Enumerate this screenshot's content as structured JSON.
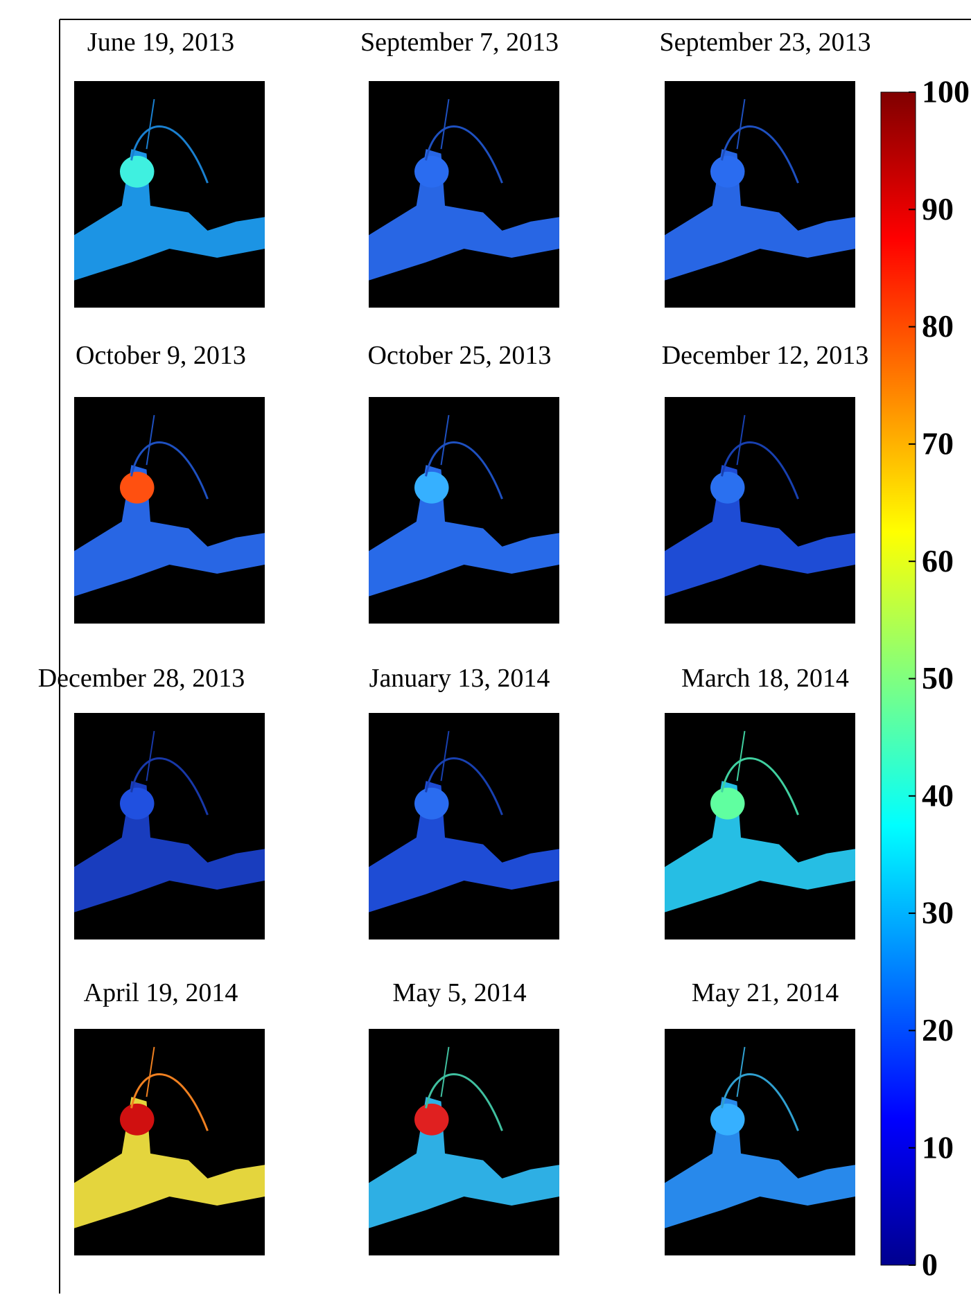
{
  "chart_data": {
    "type": "heatmap-panels",
    "panels": [
      "June 19, 2013",
      "September 7, 2013",
      "September 23, 2013",
      "October 9, 2013",
      "October 25, 2013",
      "December 12, 2013",
      "December 28, 2013",
      "January 13, 2014",
      "March 18, 2014",
      "April 19, 2014",
      "May 5, 2014",
      "May 21, 2014"
    ],
    "colorbar": {
      "ylim": [
        0,
        100
      ],
      "yticks": [
        0,
        10,
        20,
        30,
        40,
        50,
        60,
        70,
        80,
        90,
        100
      ]
    }
  }
}
